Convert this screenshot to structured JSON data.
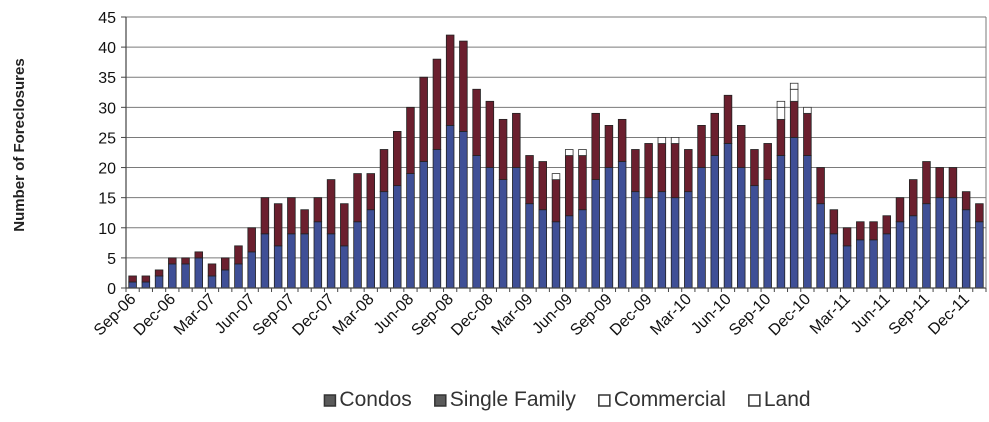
{
  "chart_data": {
    "type": "bar",
    "stacked": true,
    "title": "",
    "xlabel": "",
    "ylabel": "Number of Foreclosures",
    "ylim": [
      0,
      45
    ],
    "yticks": [
      0,
      5,
      10,
      15,
      20,
      25,
      30,
      35,
      40,
      45
    ],
    "grid": "horizontal",
    "legend_position": "bottom",
    "colors": {
      "Condos": "#6b1f2e",
      "Single Family": "#3f4f96",
      "Commercial": "#ffffff",
      "Land": "#ffffff"
    },
    "categories": [
      "Sep-06",
      "Oct-06",
      "Nov-06",
      "Dec-06",
      "Jan-07",
      "Feb-07",
      "Mar-07",
      "Apr-07",
      "May-07",
      "Jun-07",
      "Jul-07",
      "Aug-07",
      "Sep-07",
      "Oct-07",
      "Nov-07",
      "Dec-07",
      "Jan-08",
      "Feb-08",
      "Mar-08",
      "Apr-08",
      "May-08",
      "Jun-08",
      "Jul-08",
      "Aug-08",
      "Sep-08",
      "Oct-08",
      "Nov-08",
      "Dec-08",
      "Jan-09",
      "Feb-09",
      "Mar-09",
      "Apr-09",
      "May-09",
      "Jun-09",
      "Jul-09",
      "Aug-09",
      "Sep-09",
      "Oct-09",
      "Nov-09",
      "Dec-09",
      "Jan-10",
      "Feb-10",
      "Mar-10",
      "Apr-10",
      "May-10",
      "Jun-10",
      "Jul-10",
      "Aug-10",
      "Sep-10",
      "Oct-10",
      "Nov-10",
      "Dec-10",
      "Jan-11",
      "Feb-11",
      "Mar-11",
      "Apr-11",
      "May-11",
      "Jun-11",
      "Jul-11",
      "Aug-11",
      "Sep-11",
      "Oct-11",
      "Nov-11",
      "Dec-11",
      "Jan-12"
    ],
    "tick_labels": [
      "Sep-06",
      "Dec-06",
      "Mar-07",
      "Jun-07",
      "Sep-07",
      "Dec-07",
      "Mar-08",
      "Jun-08",
      "Sep-08",
      "Dec-08",
      "Mar-09",
      "Jun-09",
      "Sep-09",
      "Dec-09",
      "Mar-10",
      "Jun-10",
      "Sep-10",
      "Dec-10",
      "Mar-11",
      "Jun-11",
      "Sep-11",
      "Dec-11"
    ],
    "series": [
      {
        "name": "Single Family",
        "values": [
          1,
          1,
          2,
          4,
          4,
          5,
          2,
          3,
          4,
          6,
          9,
          7,
          9,
          9,
          11,
          9,
          7,
          11,
          13,
          16,
          17,
          19,
          21,
          23,
          27,
          26,
          22,
          20,
          18,
          20,
          14,
          13,
          11,
          12,
          13,
          18,
          20,
          21,
          16,
          15,
          16,
          15,
          16,
          20,
          22,
          24,
          20,
          17,
          18,
          22,
          25,
          22,
          14,
          9,
          7,
          8,
          8,
          9,
          11,
          12,
          14,
          15,
          15,
          13,
          11
        ]
      },
      {
        "name": "Condos",
        "values": [
          1,
          1,
          1,
          1,
          1,
          1,
          2,
          2,
          3,
          4,
          6,
          7,
          6,
          4,
          4,
          9,
          7,
          8,
          6,
          7,
          9,
          11,
          14,
          15,
          15,
          15,
          11,
          11,
          10,
          9,
          8,
          8,
          7,
          10,
          9,
          11,
          7,
          7,
          7,
          9,
          8,
          9,
          7,
          7,
          7,
          8,
          7,
          6,
          6,
          6,
          6,
          7,
          6,
          4,
          3,
          3,
          3,
          3,
          4,
          6,
          7,
          5,
          5,
          3,
          3
        ]
      },
      {
        "name": "Commercial",
        "values": [
          0,
          0,
          0,
          0,
          0,
          0,
          0,
          0,
          0,
          0,
          0,
          0,
          0,
          0,
          0,
          0,
          0,
          0,
          0,
          0,
          0,
          0,
          0,
          0,
          0,
          0,
          0,
          0,
          0,
          0,
          0,
          0,
          1,
          1,
          1,
          0,
          0,
          0,
          0,
          0,
          1,
          1,
          0,
          0,
          0,
          0,
          0,
          0,
          0,
          2,
          2,
          1,
          0,
          0,
          0,
          0,
          0,
          0,
          0,
          0,
          0,
          0,
          0,
          0,
          0
        ]
      },
      {
        "name": "Land",
        "values": [
          0,
          0,
          0,
          0,
          0,
          0,
          0,
          0,
          0,
          0,
          0,
          0,
          0,
          0,
          0,
          0,
          0,
          0,
          0,
          0,
          0,
          0,
          0,
          0,
          0,
          0,
          0,
          0,
          0,
          0,
          0,
          0,
          0,
          0,
          0,
          0,
          0,
          0,
          0,
          0,
          0,
          0,
          0,
          0,
          0,
          0,
          0,
          0,
          0,
          1,
          1,
          0,
          0,
          0,
          0,
          0,
          0,
          0,
          0,
          0,
          0,
          0,
          0,
          0,
          0
        ]
      }
    ],
    "legend": [
      "Condos",
      "Single Family",
      "Commercial",
      "Land"
    ]
  }
}
